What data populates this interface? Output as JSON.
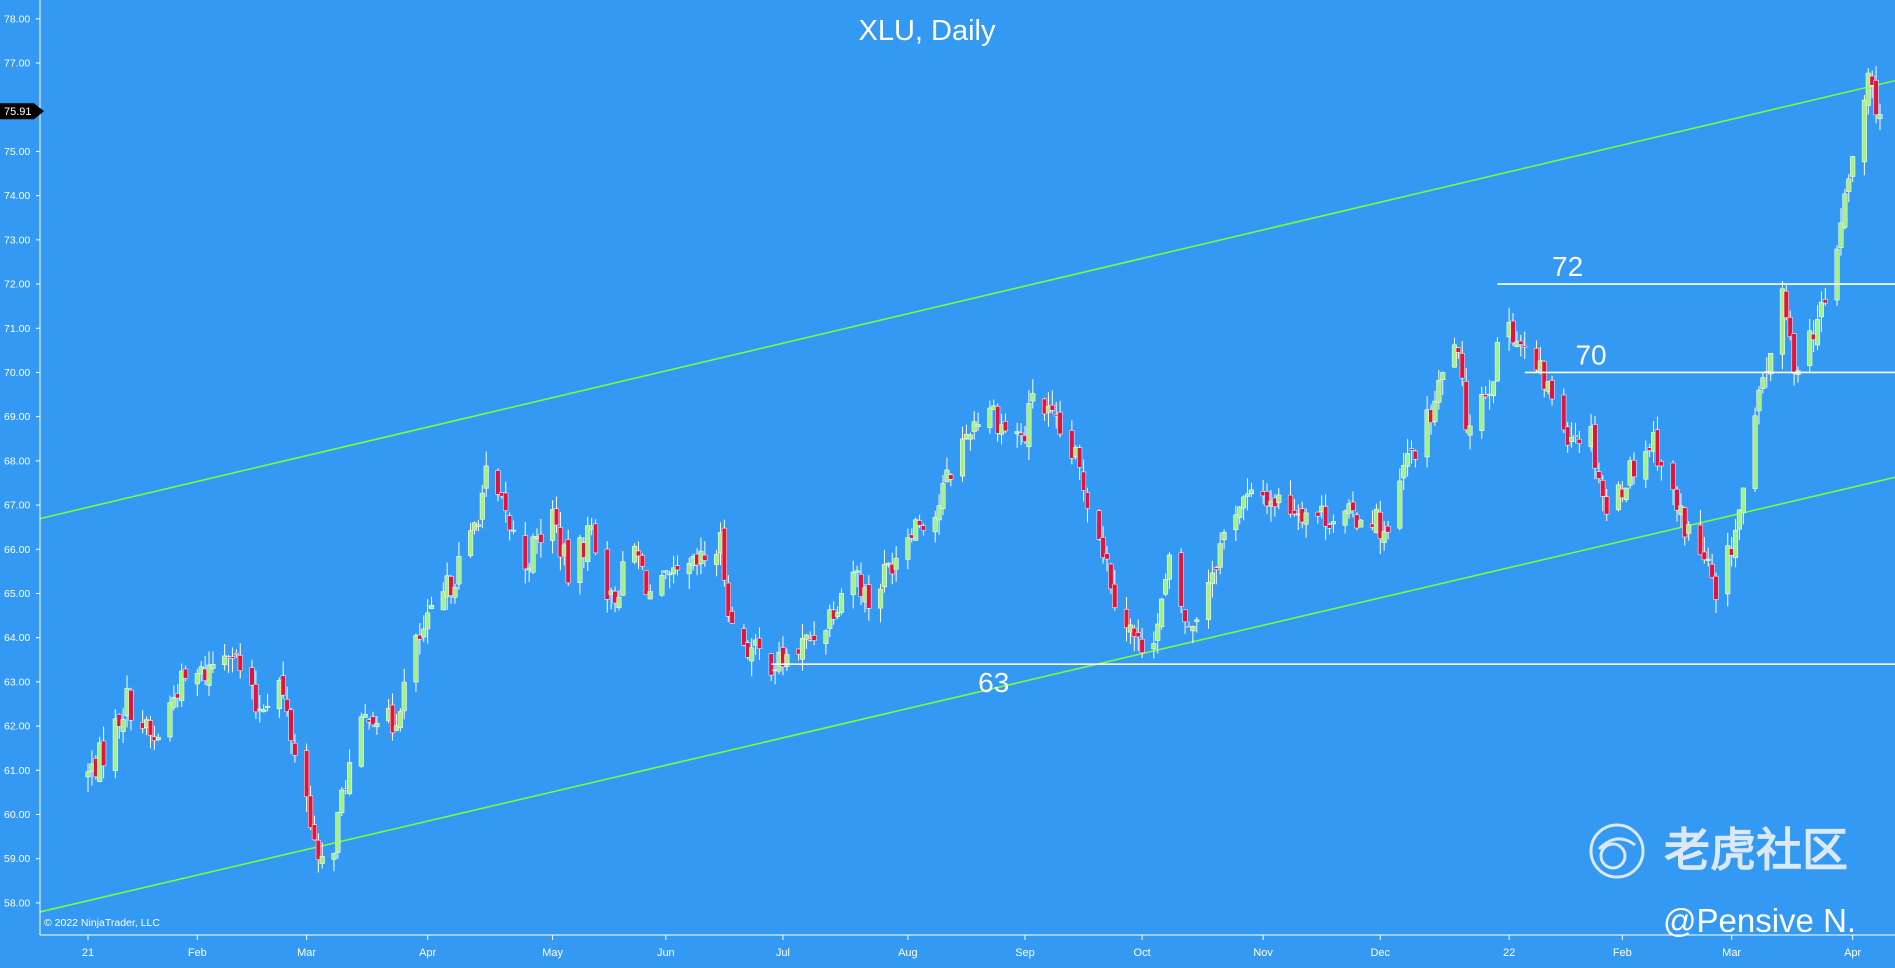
{
  "colors": {
    "background": "#3399f3",
    "axis": "#ffffff",
    "channel_line": "#7CFC3C",
    "level_line": "#ffffff",
    "candle_up": "#a6f08a",
    "candle_down": "#e0143c",
    "price_tag_bg": "#000000",
    "text": "#ffffff",
    "watermark": "#dbe8f5"
  },
  "watermark": {
    "logo_icon": "tiger-community-logo-icon",
    "brand": "老虎社区",
    "author": "@Pensive N."
  },
  "chart_data": {
    "type": "candlestick",
    "title": "XLU, Daily",
    "copyright": "© 2022 NinjaTrader, LLC",
    "ylim": [
      57.5,
      78.2
    ],
    "y_ticks": [
      "58.00",
      "59.00",
      "60.00",
      "61.00",
      "62.00",
      "63.00",
      "64.00",
      "65.00",
      "66.00",
      "67.00",
      "68.00",
      "69.00",
      "70.00",
      "71.00",
      "72.00",
      "73.00",
      "74.00",
      "75.00",
      "76.00",
      "77.00",
      "78.00"
    ],
    "x_range": [
      "2021-01-04",
      "2022-04-08"
    ],
    "x_ticks": [
      {
        "date": "2021-01-04",
        "label": "21"
      },
      {
        "date": "2021-02-01",
        "label": "Feb"
      },
      {
        "date": "2021-03-01",
        "label": "Mar"
      },
      {
        "date": "2021-04-01",
        "label": "Apr"
      },
      {
        "date": "2021-05-03",
        "label": "May"
      },
      {
        "date": "2021-06-01",
        "label": "Jun"
      },
      {
        "date": "2021-07-01",
        "label": "Jul"
      },
      {
        "date": "2021-08-02",
        "label": "Aug"
      },
      {
        "date": "2021-09-01",
        "label": "Sep"
      },
      {
        "date": "2021-10-01",
        "label": "Oct"
      },
      {
        "date": "2021-11-01",
        "label": "Nov"
      },
      {
        "date": "2021-12-01",
        "label": "Dec"
      },
      {
        "date": "2022-01-03",
        "label": "22"
      },
      {
        "date": "2022-02-01",
        "label": "Feb"
      },
      {
        "date": "2022-03-01",
        "label": "Mar"
      },
      {
        "date": "2022-04-01",
        "label": "Apr"
      }
    ],
    "last_price": "75.91",
    "close_path": [
      [
        "2021-01-04",
        60.9
      ],
      [
        "2021-01-08",
        61.4
      ],
      [
        "2021-01-14",
        62.6
      ],
      [
        "2021-01-21",
        61.6
      ],
      [
        "2021-01-27",
        62.9
      ],
      [
        "2021-02-03",
        63.2
      ],
      [
        "2021-02-09",
        63.9
      ],
      [
        "2021-02-16",
        62.4
      ],
      [
        "2021-02-22",
        63.0
      ],
      [
        "2021-02-25",
        61.8
      ],
      [
        "2021-03-02",
        60.0
      ],
      [
        "2021-03-04",
        58.7
      ],
      [
        "2021-03-08",
        59.4
      ],
      [
        "2021-03-11",
        60.8
      ],
      [
        "2021-03-17",
        62.4
      ],
      [
        "2021-03-23",
        62.0
      ],
      [
        "2021-03-29",
        63.8
      ],
      [
        "2021-04-05",
        64.9
      ],
      [
        "2021-04-12",
        66.2
      ],
      [
        "2021-04-16",
        67.6
      ],
      [
        "2021-04-20",
        66.9
      ],
      [
        "2021-04-26",
        65.7
      ],
      [
        "2021-05-03",
        66.8
      ],
      [
        "2021-05-07",
        65.4
      ],
      [
        "2021-05-13",
        66.5
      ],
      [
        "2021-05-18",
        64.8
      ],
      [
        "2021-05-24",
        66.0
      ],
      [
        "2021-05-28",
        65.0
      ],
      [
        "2021-06-04",
        65.3
      ],
      [
        "2021-06-09",
        65.6
      ],
      [
        "2021-06-15",
        66.1
      ],
      [
        "2021-06-18",
        64.2
      ],
      [
        "2021-06-23",
        63.7
      ],
      [
        "2021-06-30",
        63.4
      ],
      [
        "2021-07-06",
        63.8
      ],
      [
        "2021-07-12",
        64.4
      ],
      [
        "2021-07-19",
        65.6
      ],
      [
        "2021-07-23",
        64.8
      ],
      [
        "2021-07-28",
        65.6
      ],
      [
        "2021-08-03",
        66.6
      ],
      [
        "2021-08-09",
        66.8
      ],
      [
        "2021-08-13",
        67.8
      ],
      [
        "2021-08-18",
        68.8
      ],
      [
        "2021-08-23",
        69.3
      ],
      [
        "2021-08-26",
        68.8
      ],
      [
        "2021-09-01",
        68.5
      ],
      [
        "2021-09-03",
        69.6
      ],
      [
        "2021-09-09",
        68.7
      ],
      [
        "2021-09-14",
        68.0
      ],
      [
        "2021-09-20",
        66.4
      ],
      [
        "2021-09-24",
        65.0
      ],
      [
        "2021-09-30",
        63.8
      ],
      [
        "2021-10-05",
        64.3
      ],
      [
        "2021-10-08",
        65.6
      ],
      [
        "2021-10-13",
        64.1
      ],
      [
        "2021-10-19",
        65.6
      ],
      [
        "2021-10-25",
        67.0
      ],
      [
        "2021-11-01",
        67.2
      ],
      [
        "2021-11-08",
        67.0
      ],
      [
        "2021-11-15",
        66.8
      ],
      [
        "2021-11-22",
        66.7
      ],
      [
        "2021-11-29",
        66.8
      ],
      [
        "2021-12-03",
        66.2
      ],
      [
        "2021-12-07",
        67.8
      ],
      [
        "2021-12-14",
        69.0
      ],
      [
        "2021-12-20",
        70.8
      ],
      [
        "2021-12-23",
        68.9
      ],
      [
        "2021-12-29",
        69.8
      ],
      [
        "2022-01-03",
        71.2
      ],
      [
        "2022-01-07",
        70.4
      ],
      [
        "2022-01-12",
        69.8
      ],
      [
        "2022-01-18",
        68.7
      ],
      [
        "2022-01-24",
        68.6
      ],
      [
        "2022-01-28",
        66.8
      ],
      [
        "2022-02-03",
        67.8
      ],
      [
        "2022-02-09",
        68.5
      ],
      [
        "2022-02-15",
        66.9
      ],
      [
        "2022-02-18",
        66.4
      ],
      [
        "2022-02-23",
        65.6
      ],
      [
        "2022-02-25",
        64.7
      ],
      [
        "2022-03-03",
        66.8
      ],
      [
        "2022-03-09",
        69.8
      ],
      [
        "2022-03-14",
        71.6
      ],
      [
        "2022-03-17",
        70.2
      ],
      [
        "2022-03-22",
        71.0
      ],
      [
        "2022-03-25",
        71.5
      ],
      [
        "2022-03-29",
        73.4
      ],
      [
        "2022-04-01",
        74.8
      ],
      [
        "2022-04-05",
        76.6
      ],
      [
        "2022-04-08",
        75.9
      ]
    ],
    "channel_lines": [
      {
        "name": "upper-channel",
        "start": [
          "2021-01-04",
          66.95
        ],
        "end": [
          "2022-04-08",
          76.52
        ]
      },
      {
        "name": "lower-channel",
        "start": [
          "2021-01-04",
          58.05
        ],
        "end": [
          "2022-04-08",
          67.55
        ]
      }
    ],
    "levels": [
      {
        "value": 72,
        "label": "72",
        "start": "2021-12-31",
        "end": "2022-04-08"
      },
      {
        "value": 70,
        "label": "70",
        "start": "2022-01-07",
        "end": "2022-04-08"
      },
      {
        "value": 63.4,
        "label": "63",
        "start": "2021-06-28",
        "end": "2022-04-08"
      }
    ]
  }
}
